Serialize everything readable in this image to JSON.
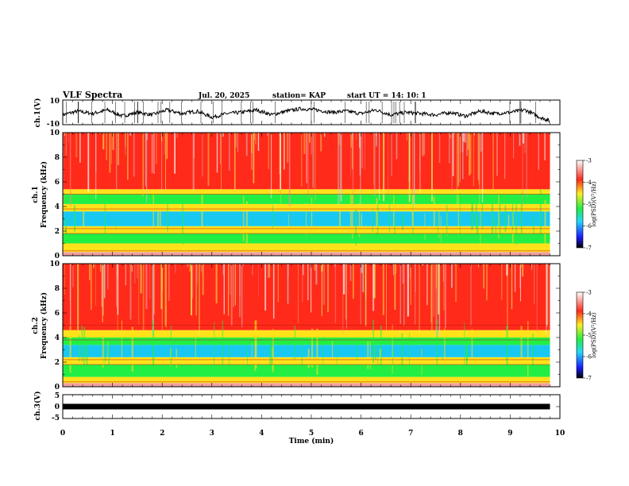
{
  "header": {
    "title": "VLF Spectra",
    "date": "Jul. 20, 2025",
    "station": "station= KAP",
    "start": "start UT =   14: 10: 1"
  },
  "colors": {
    "spec_high": "#ff2a1a",
    "spec_mid": "#ffe21a",
    "spec_low": "#22ee44",
    "spec_lowest": "#18c8f0",
    "trace": "#000000"
  },
  "chart_data": [
    {
      "id": "ch1-waveform",
      "type": "line",
      "ylabel": "ch.1(V)",
      "ylim": [
        -10,
        10
      ],
      "y_ticks": [
        "10",
        "-10"
      ],
      "xlim": [
        0,
        10
      ],
      "series": [
        {
          "name": "ch.1",
          "x": [
            0,
            0.3,
            0.6,
            0.9,
            1.2,
            1.5,
            1.8,
            2.1,
            2.4,
            2.7,
            3.0,
            3.3,
            3.6,
            3.9,
            4.2,
            4.5,
            4.8,
            5.1,
            5.4,
            5.7,
            6.0,
            6.3,
            6.6,
            6.9,
            7.2,
            7.5,
            7.8,
            8.1,
            8.4,
            8.7,
            9.0,
            9.3,
            9.6,
            9.8
          ],
          "values": [
            -2,
            1,
            -1,
            2,
            -3,
            0,
            -2,
            2,
            -1,
            1,
            -4,
            -1,
            0,
            2,
            -2,
            1,
            3,
            2,
            0,
            1,
            -1,
            2,
            -2,
            0,
            -1,
            -2,
            0,
            -3,
            1,
            -1,
            0,
            2,
            -4,
            -7
          ]
        }
      ]
    },
    {
      "id": "ch1-spectrogram",
      "type": "heatmap",
      "ylabel_line1": "ch.1",
      "ylabel_line2": "Frequency (kHz)",
      "ylim": [
        0,
        10
      ],
      "y_ticks": [
        "0",
        "2",
        "4",
        "6",
        "8",
        "10"
      ],
      "xlim": [
        0,
        10
      ],
      "data_end_min": 9.8,
      "bands_khz": [
        {
          "from": 0,
          "to": 0.3,
          "level": "mixed"
        },
        {
          "from": 0.3,
          "to": 1.0,
          "level": "mid"
        },
        {
          "from": 1.0,
          "to": 1.8,
          "level": "low"
        },
        {
          "from": 1.8,
          "to": 2.4,
          "level": "mid"
        },
        {
          "from": 2.4,
          "to": 3.6,
          "level": "lowest"
        },
        {
          "from": 3.6,
          "to": 4.2,
          "level": "mid"
        },
        {
          "from": 4.2,
          "to": 5.0,
          "level": "low"
        },
        {
          "from": 5.0,
          "to": 5.4,
          "level": "mid"
        },
        {
          "from": 5.4,
          "to": 10.0,
          "level": "high"
        }
      ],
      "colorbar": {
        "label": "log(PSD)(V²/Hz)",
        "range": [
          -7,
          -3
        ],
        "ticks": [
          "-3",
          "-4",
          "-5",
          "-6",
          "-7"
        ]
      }
    },
    {
      "id": "ch2-spectrogram",
      "type": "heatmap",
      "ylabel_line1": "ch.2",
      "ylabel_line2": "Frequency (kHz)",
      "ylim": [
        0,
        10
      ],
      "y_ticks": [
        "0",
        "2",
        "4",
        "6",
        "8",
        "10"
      ],
      "xlim": [
        0,
        10
      ],
      "data_end_min": 9.8,
      "bands_khz": [
        {
          "from": 0,
          "to": 0.3,
          "level": "mixed"
        },
        {
          "from": 0.3,
          "to": 0.8,
          "level": "mid"
        },
        {
          "from": 0.8,
          "to": 1.8,
          "level": "low"
        },
        {
          "from": 1.8,
          "to": 2.4,
          "level": "mid"
        },
        {
          "from": 2.4,
          "to": 3.4,
          "level": "lowest"
        },
        {
          "from": 3.4,
          "to": 4.0,
          "level": "low"
        },
        {
          "from": 4.0,
          "to": 4.6,
          "level": "mid"
        },
        {
          "from": 4.6,
          "to": 10.0,
          "level": "high"
        }
      ],
      "colorbar": {
        "label": "log(PSD)(V²/Hz)",
        "range": [
          -7,
          -3
        ],
        "ticks": [
          "-3",
          "-4",
          "-5",
          "-6",
          "-7"
        ]
      }
    },
    {
      "id": "ch3-waveform",
      "type": "line",
      "ylabel": "ch.3(V)",
      "ylim": [
        -5,
        5
      ],
      "y_ticks": [
        "5",
        "0",
        "-5"
      ],
      "xlim": [
        0,
        10
      ],
      "xlabel": "Time (min)",
      "x_ticks": [
        "0",
        "1",
        "2",
        "3",
        "4",
        "5",
        "6",
        "7",
        "8",
        "9",
        "10"
      ],
      "series": [
        {
          "name": "ch.3",
          "x": [
            0,
            9.8
          ],
          "values": [
            0,
            0
          ],
          "band_halfwidth": 0.5
        }
      ]
    }
  ]
}
